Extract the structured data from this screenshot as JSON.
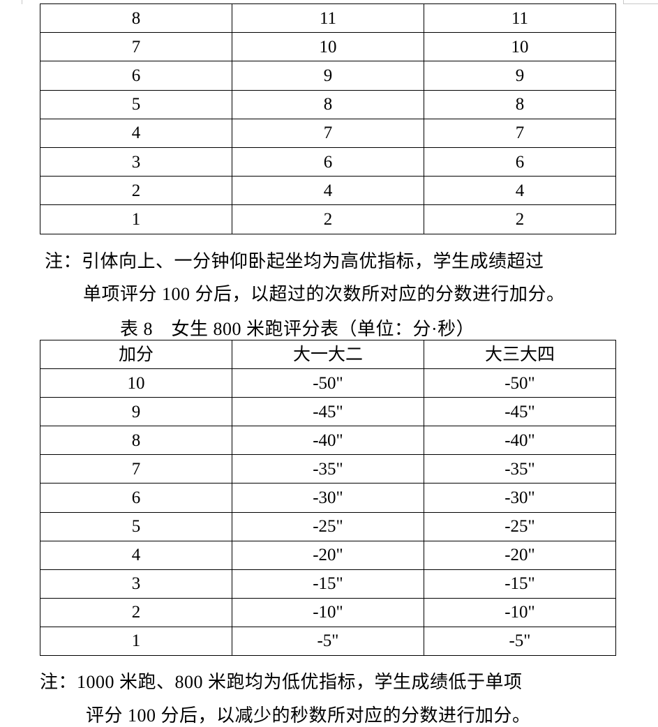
{
  "table7_tail": {
    "rows": [
      [
        "8",
        "11",
        "11"
      ],
      [
        "7",
        "10",
        "10"
      ],
      [
        "6",
        "9",
        "9"
      ],
      [
        "5",
        "8",
        "8"
      ],
      [
        "4",
        "7",
        "7"
      ],
      [
        "3",
        "6",
        "6"
      ],
      [
        "2",
        "4",
        "4"
      ],
      [
        "1",
        "2",
        "2"
      ]
    ]
  },
  "note1": {
    "line1": "注：引体向上、一分钟仰卧起坐均为高优指标，学生成绩超过",
    "line2": "单项评分 100 分后，以超过的次数所对应的分数进行加分。"
  },
  "table8": {
    "title": "表 8　女生 800 米跑评分表（单位：分·秒）",
    "headers": [
      "加分",
      "大一大二",
      "大三大四"
    ],
    "rows": [
      [
        "10",
        "-50\"",
        "-50\""
      ],
      [
        "9",
        "-45\"",
        "-45\""
      ],
      [
        "8",
        "-40\"",
        "-40\""
      ],
      [
        "7",
        "-35\"",
        "-35\""
      ],
      [
        "6",
        "-30\"",
        "-30\""
      ],
      [
        "5",
        "-25\"",
        "-25\""
      ],
      [
        "4",
        "-20\"",
        "-20\""
      ],
      [
        "3",
        "-15\"",
        "-15\""
      ],
      [
        "2",
        "-10\"",
        "-10\""
      ],
      [
        "1",
        "-5\"",
        "-5\""
      ]
    ]
  },
  "note2": {
    "line1": "注：1000 米跑、800 米跑均为低优指标，学生成绩低于单项",
    "line2": "评分 100 分后，以减少的秒数所对应的分数进行加分。"
  }
}
